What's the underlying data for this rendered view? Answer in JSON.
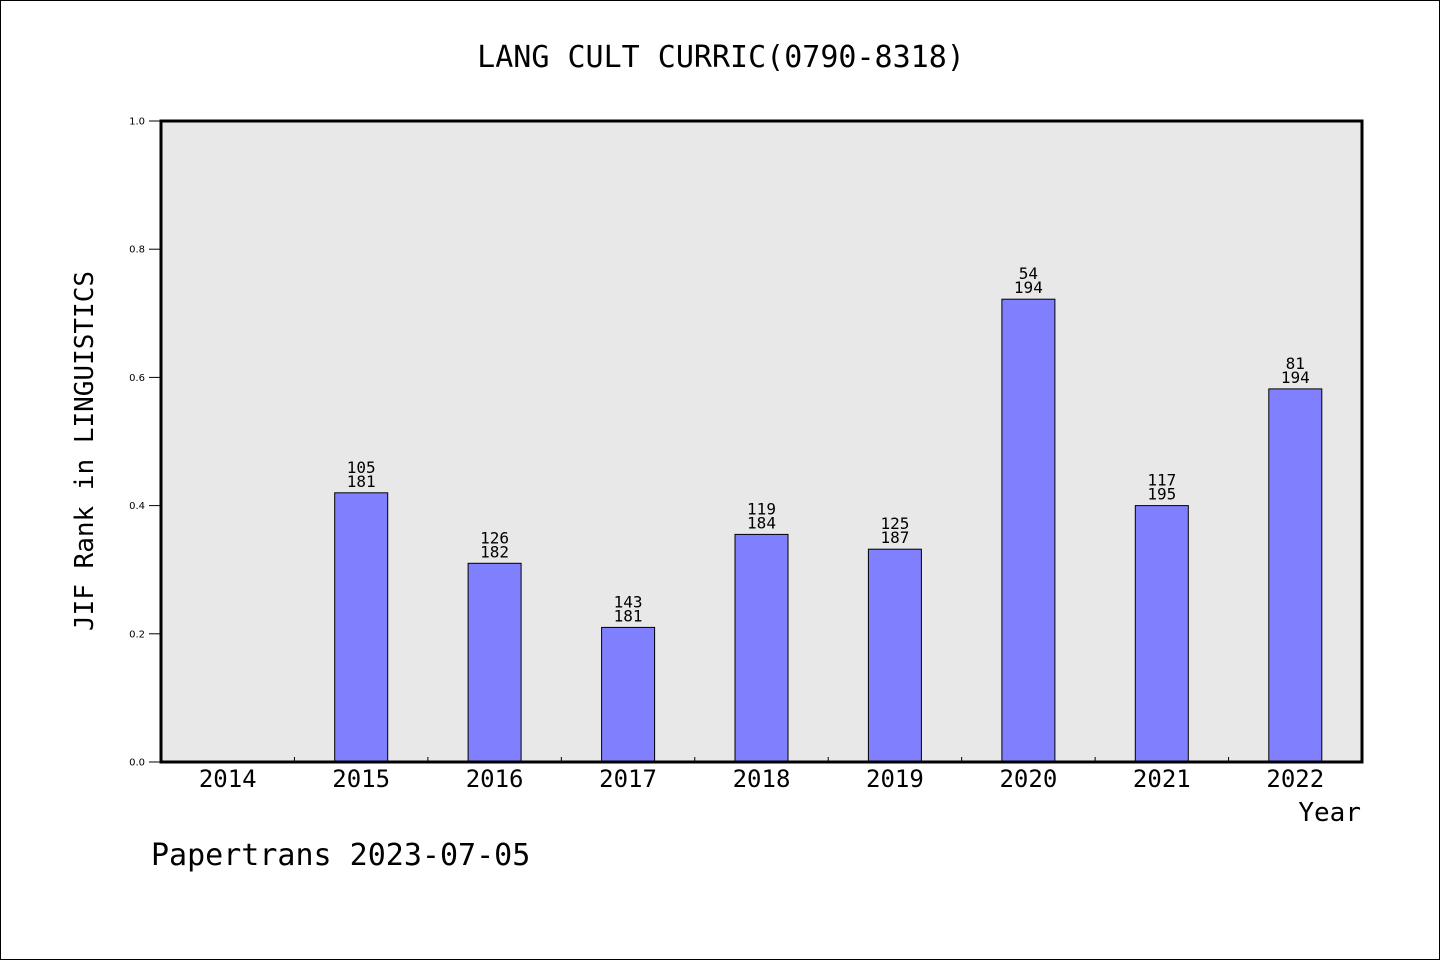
{
  "chart_data": {
    "type": "bar",
    "title": "LANG CULT CURRIC(0790-8318)",
    "xlabel": "Year",
    "ylabel": "JIF Rank in LINGUISTICS",
    "categories": [
      "2014",
      "2015",
      "2016",
      "2017",
      "2018",
      "2019",
      "2020",
      "2021",
      "2022"
    ],
    "values": [
      null,
      0.42,
      0.31,
      0.21,
      0.355,
      0.332,
      0.722,
      0.4,
      0.582
    ],
    "labels": [
      null,
      {
        "rank": "105",
        "total": "181"
      },
      {
        "rank": "126",
        "total": "182"
      },
      {
        "rank": "143",
        "total": "181"
      },
      {
        "rank": "119",
        "total": "184"
      },
      {
        "rank": "125",
        "total": "187"
      },
      {
        "rank": "54",
        "total": "194"
      },
      {
        "rank": "117",
        "total": "195"
      },
      {
        "rank": "81",
        "total": "194"
      }
    ],
    "ylim": [
      0.0,
      1.0
    ],
    "yticks": [
      "0.0",
      "0.2",
      "0.4",
      "0.6",
      "0.8",
      "1.0"
    ],
    "bar_color": "#8080ff",
    "plot_background": "#e8e8e8",
    "grid": false
  },
  "footer": "Papertrans 2023-07-05"
}
